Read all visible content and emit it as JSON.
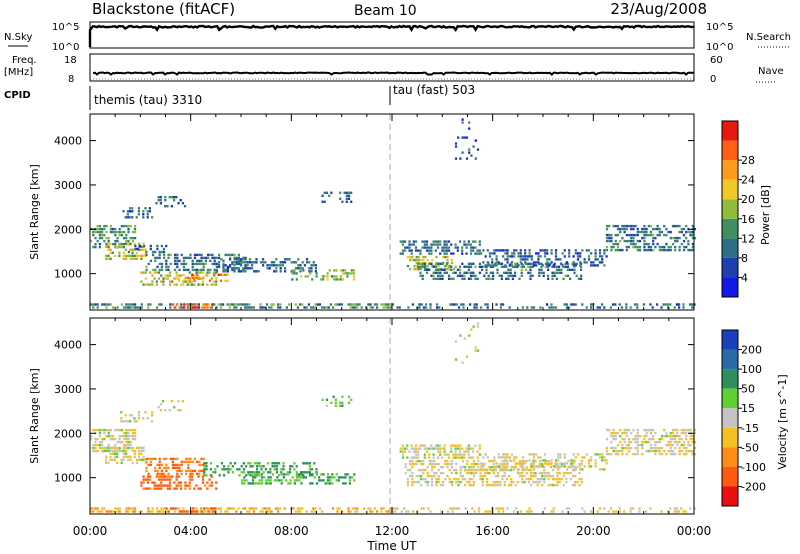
{
  "header": {
    "station": "Blackstone (fitACF)",
    "beam": "Beam 10",
    "date": "23/Aug/2008"
  },
  "status_panels": {
    "nsky": {
      "label": "N.Sky",
      "ticks": [
        "10^5",
        "10^0"
      ],
      "right_label": "N.Search",
      "right_ticks": [
        "10^5",
        "10^0"
      ]
    },
    "freq": {
      "label_line1": "Freq.",
      "label_line2": "[MHz]",
      "ticks": [
        "18",
        "8"
      ],
      "right_label": "Nave",
      "right_ticks": [
        "60",
        "0"
      ]
    },
    "cpid": {
      "label": "CPID",
      "segments": [
        {
          "name": "themis (tau) 3310",
          "start_hour": 0,
          "end_hour": 12
        },
        {
          "name": "tau (fast) 503",
          "start_hour": 12,
          "end_hour": 24
        }
      ]
    }
  },
  "axes": {
    "ylabel": "Slant Range [km]",
    "xlabel": "Time UT",
    "xticks": [
      "00:00",
      "04:00",
      "08:00",
      "12:00",
      "16:00",
      "20:00",
      "00:00"
    ],
    "yticks": [
      "1000",
      "2000",
      "3000",
      "4000"
    ]
  },
  "colorbars": {
    "power": {
      "label": "Power [dB]",
      "ticks": [
        "4",
        "8",
        "12",
        "16",
        "20",
        "24",
        "28"
      ],
      "colors": [
        "#1418e6",
        "#1e3fae",
        "#2e6e86",
        "#3f9060",
        "#8bbd3a",
        "#f0c828",
        "#ff9a1c",
        "#ff6016",
        "#e81a10"
      ]
    },
    "velocity": {
      "label": "Velocity [m s^-1]",
      "ticks": [
        "200",
        "100",
        "50",
        "15",
        "-15",
        "-50",
        "-100",
        "-200"
      ],
      "colors": [
        "#1c3fc0",
        "#2a6aa8",
        "#2f8f5a",
        "#5fd02f",
        "#c4c4c4",
        "#f4c023",
        "#ff8c14",
        "#ff5a10",
        "#e81010"
      ]
    }
  },
  "chart_data": [
    {
      "type": "heatmap",
      "name": "power",
      "x_range_hours": [
        0,
        24
      ],
      "ylim": [
        180,
        4600
      ],
      "ylabel": "Slant Range [km]",
      "xlabel": "",
      "value_label": "Power [dB]",
      "clim": [
        0,
        30
      ],
      "scatter_regions": [
        {
          "t": [
            0.0,
            1.8
          ],
          "r": [
            1600,
            2100
          ],
          "mean": 11,
          "density": 0.55
        },
        {
          "t": [
            0.6,
            2.2
          ],
          "r": [
            1350,
            1700
          ],
          "mean": 17,
          "density": 0.5
        },
        {
          "t": [
            1.2,
            2.5
          ],
          "r": [
            2250,
            2500
          ],
          "mean": 8,
          "density": 0.4
        },
        {
          "t": [
            2.6,
            3.8
          ],
          "r": [
            2500,
            2750
          ],
          "mean": 7,
          "density": 0.35
        },
        {
          "t": [
            2.2,
            6.2
          ],
          "r": [
            1100,
            1450
          ],
          "mean": 9,
          "density": 0.5
        },
        {
          "t": [
            1.5,
            3.0
          ],
          "r": [
            1500,
            1650
          ],
          "mean": 8,
          "density": 0.35
        },
        {
          "t": [
            2.0,
            5.0
          ],
          "r": [
            750,
            1050
          ],
          "mean": 16,
          "density": 0.45
        },
        {
          "t": [
            3.5,
            5.5
          ],
          "r": [
            850,
            1000
          ],
          "mean": 22,
          "density": 0.4
        },
        {
          "t": [
            5.0,
            9.0
          ],
          "r": [
            1050,
            1350
          ],
          "mean": 8,
          "density": 0.45
        },
        {
          "t": [
            8.0,
            10.5
          ],
          "r": [
            850,
            1100
          ],
          "mean": 14,
          "density": 0.45
        },
        {
          "t": [
            9.2,
            10.4
          ],
          "r": [
            2600,
            2850
          ],
          "mean": 8,
          "density": 0.35
        },
        {
          "t": [
            0.0,
            12.0
          ],
          "r": [
            200,
            330
          ],
          "mean": 10,
          "density": 0.55
        },
        {
          "t": [
            3.0,
            5.0
          ],
          "r": [
            200,
            330
          ],
          "mean": 25,
          "density": 0.5
        },
        {
          "t": [
            12.3,
            15.5
          ],
          "r": [
            1450,
            1750
          ],
          "mean": 8,
          "density": 0.6
        },
        {
          "t": [
            12.5,
            14.5
          ],
          "r": [
            1100,
            1400
          ],
          "mean": 16,
          "density": 0.5
        },
        {
          "t": [
            13.0,
            19.5
          ],
          "r": [
            850,
            1250
          ],
          "mean": 9,
          "density": 0.5
        },
        {
          "t": [
            15.5,
            20.5
          ],
          "r": [
            1200,
            1550
          ],
          "mean": 7,
          "density": 0.4
        },
        {
          "t": [
            20.5,
            24.0
          ],
          "r": [
            1550,
            2100
          ],
          "mean": 9,
          "density": 0.5
        },
        {
          "t": [
            12.0,
            24.0
          ],
          "r": [
            200,
            330
          ],
          "mean": 8,
          "density": 0.35
        },
        {
          "t": [
            14.5,
            15.5
          ],
          "r": [
            3600,
            4500
          ],
          "mean": 6,
          "density": 0.12
        }
      ]
    },
    {
      "type": "heatmap",
      "name": "velocity",
      "x_range_hours": [
        0,
        24
      ],
      "ylim": [
        180,
        4600
      ],
      "ylabel": "Slant Range [km]",
      "xlabel": "Time UT",
      "value_label": "Velocity [m s^-1]",
      "clim": [
        -250,
        250
      ],
      "scatter_regions": [
        {
          "t": [
            0.0,
            1.8
          ],
          "r": [
            1600,
            2100
          ],
          "mean": -5,
          "density": 0.55
        },
        {
          "t": [
            0.6,
            2.2
          ],
          "r": [
            1350,
            1700
          ],
          "mean": -8,
          "density": 0.5
        },
        {
          "t": [
            1.2,
            2.5
          ],
          "r": [
            2250,
            2500
          ],
          "mean": -10,
          "density": 0.4
        },
        {
          "t": [
            2.6,
            3.8
          ],
          "r": [
            2500,
            2750
          ],
          "mean": -8,
          "density": 0.35
        },
        {
          "t": [
            2.2,
            4.5
          ],
          "r": [
            1100,
            1450
          ],
          "mean": -90,
          "density": 0.5
        },
        {
          "t": [
            4.5,
            9.0
          ],
          "r": [
            1050,
            1350
          ],
          "mean": 60,
          "density": 0.45
        },
        {
          "t": [
            2.0,
            5.0
          ],
          "r": [
            750,
            1050
          ],
          "mean": -120,
          "density": 0.45
        },
        {
          "t": [
            6.0,
            10.5
          ],
          "r": [
            850,
            1100
          ],
          "mean": 55,
          "density": 0.45
        },
        {
          "t": [
            9.2,
            10.4
          ],
          "r": [
            2600,
            2850
          ],
          "mean": 40,
          "density": 0.35
        },
        {
          "t": [
            0.0,
            12.0
          ],
          "r": [
            200,
            330
          ],
          "mean": -40,
          "density": 0.55
        },
        {
          "t": [
            3.0,
            5.0
          ],
          "r": [
            200,
            330
          ],
          "mean": -150,
          "density": 0.5
        },
        {
          "t": [
            12.3,
            15.5
          ],
          "r": [
            1450,
            1750
          ],
          "mean": -5,
          "density": 0.6
        },
        {
          "t": [
            12.5,
            19.5
          ],
          "r": [
            850,
            1400
          ],
          "mean": -10,
          "density": 0.5
        },
        {
          "t": [
            15.5,
            20.5
          ],
          "r": [
            1200,
            1550
          ],
          "mean": -8,
          "density": 0.4
        },
        {
          "t": [
            20.5,
            24.0
          ],
          "r": [
            1550,
            2100
          ],
          "mean": -12,
          "density": 0.5
        },
        {
          "t": [
            12.0,
            24.0
          ],
          "r": [
            200,
            330
          ],
          "mean": -20,
          "density": 0.3
        },
        {
          "t": [
            14.5,
            15.5
          ],
          "r": [
            3600,
            4500
          ],
          "mean": 0,
          "density": 0.12
        }
      ]
    }
  ]
}
